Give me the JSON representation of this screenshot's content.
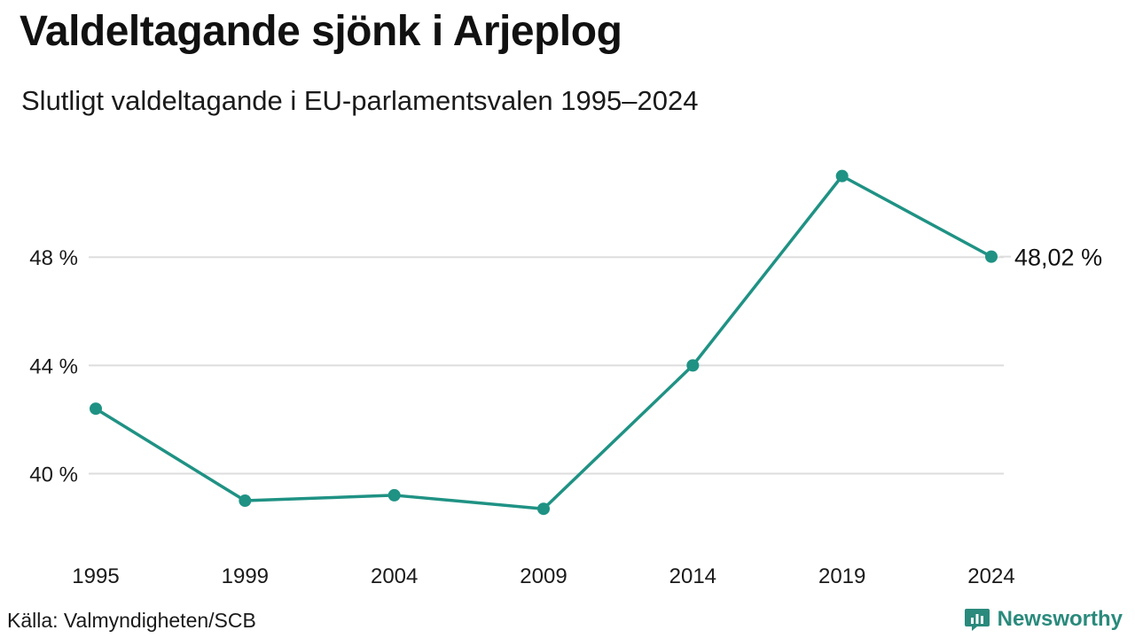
{
  "header": {
    "title": "Valdeltagande sjönk i Arjeplog",
    "subtitle": "Slutligt valdeltagande i EU-parlamentsvalen 1995–2024"
  },
  "footer": {
    "source": "Källa: Valmyndigheten/SCB",
    "brand": "Newsworthy",
    "brand_icon": "bar-chart-speech-bubble-icon"
  },
  "colors": {
    "line": "#1f9284",
    "grid": "#dddddd",
    "brand": "#2a8a7c"
  },
  "chart_data": {
    "type": "line",
    "title": "Valdeltagande sjönk i Arjeplog",
    "subtitle": "Slutligt valdeltagande i EU-parlamentsvalen 1995–2024",
    "xlabel": "",
    "ylabel": "",
    "categories": [
      "1995",
      "1999",
      "2004",
      "2009",
      "2014",
      "2019",
      "2024"
    ],
    "series": [
      {
        "values": [
          42.4,
          39.0,
          39.2,
          38.7,
          44.0,
          51.0,
          48.02
        ]
      }
    ],
    "y_ticks": [
      40,
      44,
      48
    ],
    "y_tick_labels": [
      "40 %",
      "44 %",
      "48 %"
    ],
    "ylim": [
      37.2,
      52.2
    ],
    "grid": true,
    "end_label": "48,02 %",
    "legend": "none"
  }
}
